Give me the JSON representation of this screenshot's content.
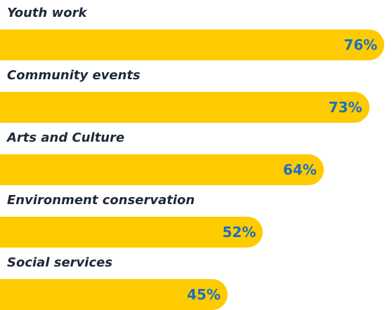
{
  "chart_data": {
    "type": "bar",
    "orientation": "horizontal",
    "categories": [
      "Youth work",
      "Community events",
      "Arts and Culture",
      "Environment conservation",
      "Social services"
    ],
    "values": [
      76,
      73,
      64,
      52,
      45
    ],
    "value_labels": [
      "76%",
      "73%",
      "64%",
      "52%",
      "45%"
    ],
    "unit": "%",
    "xlim": [
      0,
      100
    ],
    "title": "",
    "xlabel": "",
    "ylabel": "",
    "grid": false,
    "legend": "none"
  },
  "colors": {
    "bar": "#fecb00",
    "value_text": "#1c6fbf",
    "category_text": "#1f2937",
    "background": "#ffffff"
  }
}
